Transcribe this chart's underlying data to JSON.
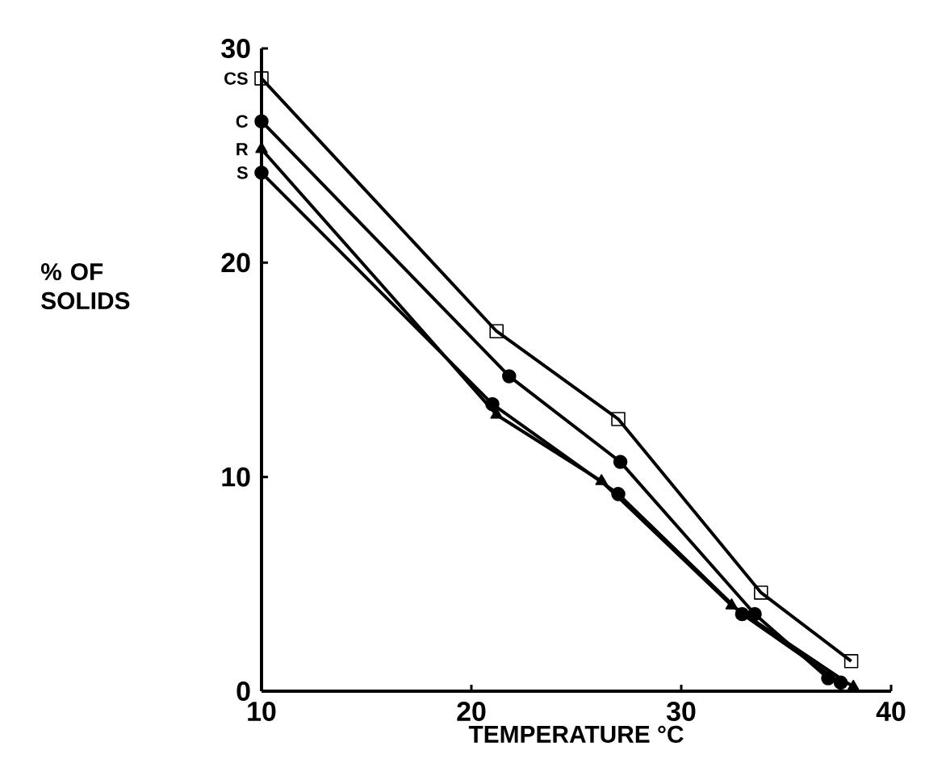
{
  "chart_data": {
    "type": "line",
    "xlabel": "TEMPERATURE °C",
    "ylabel": "% OF SOLIDS",
    "xlim": [
      10,
      40
    ],
    "ylim": [
      0,
      30
    ],
    "xticks": [
      10,
      20,
      30,
      40
    ],
    "yticks": [
      0,
      10,
      20,
      30
    ],
    "grid": false,
    "legend": false,
    "line_style": "solid",
    "series": [
      {
        "name": "CS",
        "color": "#000000",
        "marker": "square",
        "x": [
          10,
          21.2,
          27.0,
          33.8,
          38.1
        ],
        "values": [
          28.6,
          16.8,
          12.7,
          4.6,
          1.4
        ]
      },
      {
        "name": "C",
        "color": "#000000",
        "marker": "circle",
        "x": [
          10,
          21.8,
          27.1,
          33.5,
          37.0
        ],
        "values": [
          26.6,
          14.7,
          10.7,
          3.6,
          0.6
        ]
      },
      {
        "name": "R",
        "color": "#000000",
        "marker": "triangle",
        "x": [
          10,
          21.2,
          26.2,
          32.4,
          38.2
        ],
        "values": [
          25.3,
          12.9,
          9.8,
          4.0,
          0.2
        ]
      },
      {
        "name": "S",
        "color": "#000000",
        "marker": "circle",
        "x": [
          10,
          21.0,
          27.0,
          32.9,
          37.6
        ],
        "values": [
          24.2,
          13.4,
          9.2,
          3.6,
          0.4
        ]
      }
    ]
  }
}
